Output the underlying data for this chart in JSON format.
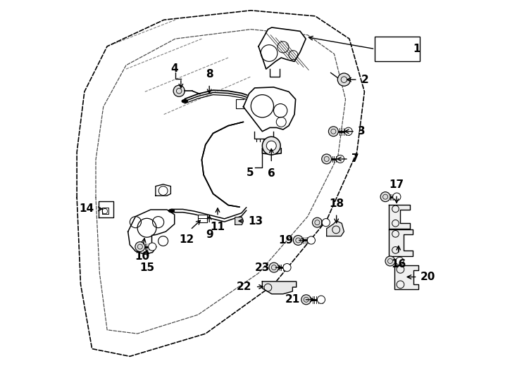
{
  "bg_color": "#ffffff",
  "line_color": "#000000",
  "fig_width": 7.34,
  "fig_height": 5.4,
  "dpi": 100,
  "door_outer": {
    "x": [
      0.02,
      0.02,
      0.05,
      0.12,
      0.28,
      0.5,
      0.68,
      0.77,
      0.8,
      0.77,
      0.68,
      0.5,
      0.28,
      0.1,
      0.02
    ],
    "y": [
      0.45,
      0.62,
      0.8,
      0.92,
      0.97,
      0.98,
      0.95,
      0.88,
      0.72,
      0.55,
      0.38,
      0.22,
      0.08,
      0.06,
      0.45
    ]
  },
  "door_inner": {
    "x": [
      0.07,
      0.07,
      0.1,
      0.17,
      0.3,
      0.5,
      0.65,
      0.72,
      0.74,
      0.72,
      0.63,
      0.47,
      0.28,
      0.14,
      0.07
    ],
    "y": [
      0.45,
      0.6,
      0.76,
      0.87,
      0.92,
      0.93,
      0.9,
      0.84,
      0.7,
      0.55,
      0.4,
      0.26,
      0.14,
      0.12,
      0.45
    ]
  },
  "label_fontsize": 11,
  "leader_lw": 1.0
}
